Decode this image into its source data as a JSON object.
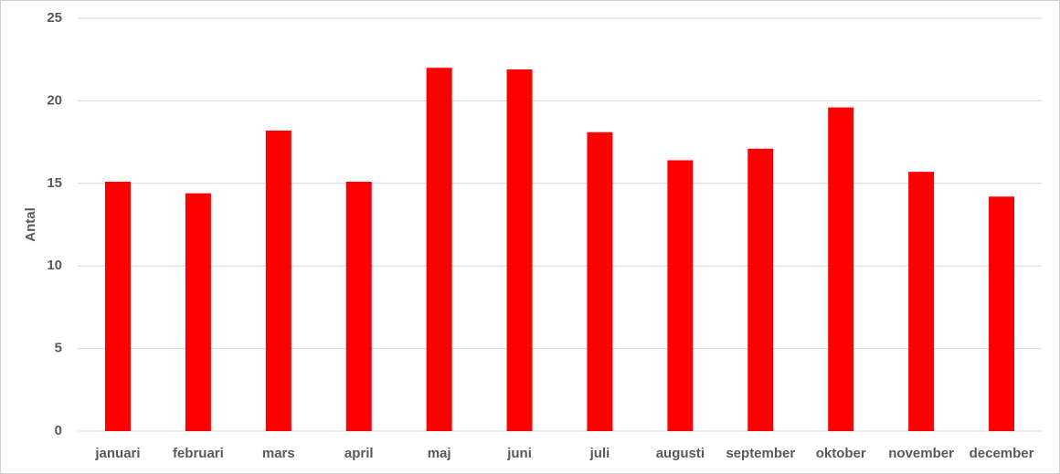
{
  "chart_data": {
    "type": "bar",
    "y_label": "Antal",
    "categories": [
      "januari",
      "februari",
      "mars",
      "april",
      "maj",
      "juni",
      "juli",
      "augusti",
      "september",
      "oktober",
      "november",
      "december"
    ],
    "values": [
      15.1,
      14.4,
      18.2,
      15.1,
      22.0,
      21.9,
      18.1,
      16.4,
      17.1,
      19.6,
      15.7,
      14.2
    ],
    "color": "#ff0000",
    "ylim": [
      0,
      25
    ],
    "yticks": [
      0,
      5,
      10,
      15,
      20,
      25
    ],
    "grid": true
  }
}
